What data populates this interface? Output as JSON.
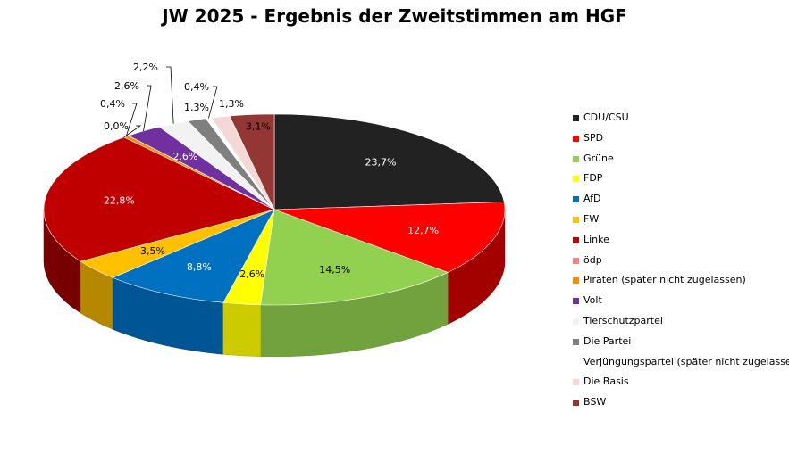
{
  "chart_data": {
    "type": "pie",
    "title": "JW 2025 - Ergebnis der Zweitstimmen am HGF",
    "slices": [
      {
        "name": "CDU/CSU",
        "value": 23.7,
        "label": "23,7%",
        "color": "#222222"
      },
      {
        "name": "SPD",
        "value": 12.7,
        "label": "12,7%",
        "color": "#ff0000"
      },
      {
        "name": "Grüne",
        "value": 14.5,
        "label": "14,5%",
        "color": "#92d050"
      },
      {
        "name": "FDP",
        "value": 2.6,
        "label": "2,6%",
        "color": "#ffff00"
      },
      {
        "name": "AfD",
        "value": 8.8,
        "label": "8,8%",
        "color": "#0070c0"
      },
      {
        "name": "FW",
        "value": 3.5,
        "label": "3,5%",
        "color": "#ffc000"
      },
      {
        "name": "Linke",
        "value": 22.8,
        "label": "22,8%",
        "color": "#c00000"
      },
      {
        "name": "ödp",
        "value": 0.0,
        "label": "0,0%",
        "color": "#ff8080"
      },
      {
        "name": "Piraten (später nicht zugelassen)",
        "value": 0.4,
        "label": "0,4%",
        "color": "#ff8c00"
      },
      {
        "name": "Volt",
        "value": 2.6,
        "label": "2,6%",
        "color": "#7030a0"
      },
      {
        "name": "Tierschutzpartei",
        "value": 2.2,
        "label": "2,2%",
        "color": "#f2f2f2"
      },
      {
        "name": "Die Partei",
        "value": 1.3,
        "label": "1,3%",
        "color": "#7f7f7f"
      },
      {
        "name": "Verjüngungspartei (später nicht zugelassen)",
        "value": 0.4,
        "label": "0,4%",
        "color": "#ffffff"
      },
      {
        "name": "Die Basis",
        "value": 1.3,
        "label": "1,3%",
        "color": "#f4d7d7"
      },
      {
        "name": "BSW",
        "value": 3.1,
        "label": "3,1%",
        "color": "#943634"
      }
    ],
    "legend_position": "right"
  }
}
